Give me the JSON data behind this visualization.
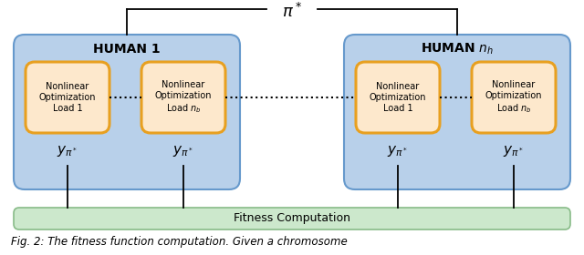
{
  "fig_width": 6.4,
  "fig_height": 2.8,
  "dpi": 100,
  "bg_color": "#ffffff",
  "blue_box_color": "#b8d0ea",
  "blue_box_edge": "#6699cc",
  "orange_box_color": "#fde8cc",
  "orange_box_edge": "#e8a020",
  "green_box_color": "#cce8cc",
  "green_box_edge": "#88bb88",
  "fitness_label": "Fitness Computation",
  "human1_label": "HUMAN 1",
  "human2_label": "HUMAN $n_h$",
  "nlopt_load1": "Nonlinear\nOptimization\nLoad 1",
  "nlopt_loadnb": "Nonlinear\nOptimization\nLoad $n_b$",
  "caption": "Fig. 2: The fitness function computation. Given a chromosome"
}
